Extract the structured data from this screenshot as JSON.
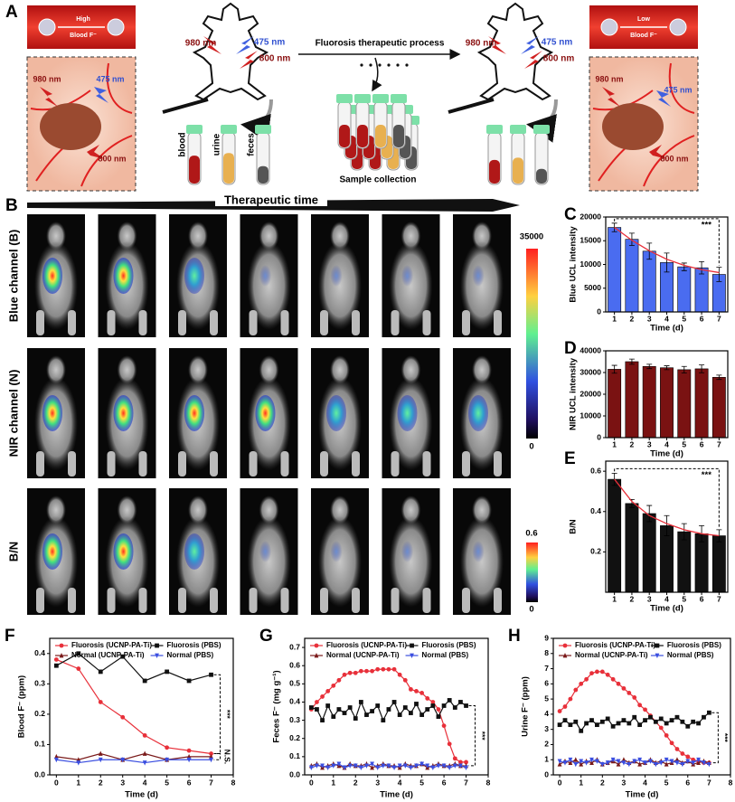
{
  "panel_a": {
    "label": "A",
    "left_box": {
      "level": "High",
      "blood": "Blood F⁻"
    },
    "left_inset": {
      "w980": "980 nm",
      "w475": "475 nm",
      "w800": "800 nm"
    },
    "left_mouse": {
      "w980": "980 nm",
      "w475": "475 nm",
      "w800": "800 nm"
    },
    "process": "Fluorosis therapeutic process",
    "tubes": [
      "blood",
      "urine",
      "feces"
    ],
    "sample_collection": "Sample collection",
    "right_mouse": {
      "w980": "980 nm",
      "w475": "475 nm",
      "w800": "800 nm"
    },
    "right_box": {
      "level": "Low",
      "blood": "Blood F⁻"
    },
    "right_inset": {
      "w980": "980 nm",
      "w475": "475 nm",
      "w800": "800 nm"
    }
  },
  "panel_b": {
    "label": "B",
    "arrow_title": "Therapeutic time",
    "rows": [
      "Blue channel (B)",
      "NIR channel (N)",
      "B/N"
    ],
    "colorbars": [
      {
        "max": 35000,
        "min": 0
      },
      {
        "max": 0.6,
        "min": 0
      }
    ]
  },
  "chart_data": [
    {
      "type": "bar",
      "panel": "C",
      "ylabel": "Blue UCL intensity",
      "xlabel": "Time (d)",
      "color": "#4a6cf0",
      "categories": [
        "1",
        "2",
        "3",
        "4",
        "5",
        "6",
        "7"
      ],
      "values": [
        17800,
        15300,
        12800,
        10400,
        9500,
        9300,
        7900
      ],
      "errors": [
        900,
        1300,
        1700,
        2000,
        800,
        1300,
        1500
      ],
      "trend": [
        17800,
        15100,
        12900,
        11100,
        9800,
        8900,
        8300
      ],
      "trend_color": "#e8303a",
      "annotation": "***",
      "ylim": [
        0,
        20000
      ],
      "yticks": [
        0,
        5000,
        10000,
        15000,
        20000
      ]
    },
    {
      "type": "bar",
      "panel": "D",
      "ylabel": "NIR UCL intensity",
      "xlabel": "Time (d)",
      "color": "#7a1212",
      "categories": [
        "1",
        "2",
        "3",
        "4",
        "5",
        "6",
        "7"
      ],
      "values": [
        31500,
        35000,
        32800,
        32200,
        31300,
        31700,
        27800
      ],
      "errors": [
        1800,
        1200,
        1000,
        900,
        1500,
        1800,
        1000
      ],
      "ylim": [
        0,
        40000
      ],
      "yticks": [
        0,
        10000,
        20000,
        30000,
        40000
      ]
    },
    {
      "type": "bar",
      "panel": "E",
      "ylabel": "B/N",
      "xlabel": "Time (d)",
      "color": "#111111",
      "categories": [
        "1",
        "2",
        "3",
        "4",
        "5",
        "6",
        "7"
      ],
      "values": [
        0.56,
        0.44,
        0.39,
        0.33,
        0.3,
        0.29,
        0.28
      ],
      "errors": [
        0.03,
        0.02,
        0.04,
        0.05,
        0.04,
        0.04,
        0.03
      ],
      "trend": [
        0.56,
        0.45,
        0.38,
        0.34,
        0.31,
        0.29,
        0.28
      ],
      "trend_color": "#e8303a",
      "annotation": "***",
      "ylim": [
        0,
        0.65
      ],
      "yticks": [
        0.2,
        0.4,
        0.6
      ]
    },
    {
      "type": "line",
      "panel": "F",
      "ylabel": "Blood F⁻ (ppm)",
      "xlabel": "Time (d)",
      "x": [
        0,
        1,
        2,
        3,
        4,
        5,
        6,
        7
      ],
      "series": [
        {
          "name": "Fluorosis (UCNP-PA-Ti)",
          "color": "#e8303a",
          "marker": "circle",
          "values": [
            0.38,
            0.35,
            0.24,
            0.19,
            0.13,
            0.09,
            0.08,
            0.07
          ]
        },
        {
          "name": "Fluorosis (PBS)",
          "color": "#111111",
          "marker": "square",
          "values": [
            0.36,
            0.4,
            0.34,
            0.39,
            0.31,
            0.34,
            0.31,
            0.33
          ]
        },
        {
          "name": "Normal (UCNP-PA-Ti)",
          "color": "#7a1a1a",
          "marker": "up",
          "values": [
            0.06,
            0.05,
            0.07,
            0.05,
            0.07,
            0.05,
            0.06,
            0.06
          ]
        },
        {
          "name": "Normal (PBS)",
          "color": "#3a4ee0",
          "marker": "down",
          "values": [
            0.05,
            0.04,
            0.05,
            0.05,
            0.04,
            0.05,
            0.05,
            0.05
          ]
        }
      ],
      "annotations": [
        "***",
        "N.S."
      ],
      "xlim": [
        -0.3,
        8
      ],
      "xticks": [
        0,
        1,
        2,
        3,
        4,
        5,
        6,
        7,
        8
      ],
      "ylim": [
        0,
        0.45
      ],
      "yticks": [
        {
          "value": 0,
          "label": "0.0"
        },
        0.1,
        0.2,
        0.3,
        0.4
      ]
    },
    {
      "type": "line",
      "panel": "G",
      "ylabel": "Feces F⁻ (mg g⁻¹)",
      "xlabel": "Time (d)",
      "x": [
        0,
        0.25,
        0.5,
        0.75,
        1,
        1.25,
        1.5,
        1.75,
        2,
        2.25,
        2.5,
        2.75,
        3,
        3.25,
        3.5,
        3.75,
        4,
        4.25,
        4.5,
        4.75,
        5,
        5.25,
        5.5,
        5.75,
        6,
        6.25,
        6.5,
        6.75,
        7
      ],
      "series": [
        {
          "name": "Fluorosis (UCNP-PA-Ti)",
          "color": "#e8303a",
          "marker": "circle",
          "values": [
            0.36,
            0.4,
            0.43,
            0.46,
            0.49,
            0.52,
            0.55,
            0.56,
            0.56,
            0.57,
            0.57,
            0.57,
            0.58,
            0.58,
            0.58,
            0.58,
            0.55,
            0.52,
            0.47,
            0.46,
            0.45,
            0.42,
            0.4,
            0.36,
            0.27,
            0.17,
            0.09,
            0.07,
            0.07
          ]
        },
        {
          "name": "Fluorosis (PBS)",
          "color": "#111111",
          "marker": "square",
          "values": [
            0.37,
            0.36,
            0.3,
            0.38,
            0.32,
            0.36,
            0.34,
            0.37,
            0.31,
            0.4,
            0.33,
            0.35,
            0.38,
            0.3,
            0.36,
            0.4,
            0.33,
            0.37,
            0.34,
            0.39,
            0.33,
            0.36,
            0.38,
            0.32,
            0.38,
            0.41,
            0.37,
            0.4,
            0.38
          ]
        },
        {
          "name": "Normal (UCNP-PA-Ti)",
          "color": "#7a1a1a",
          "marker": "up",
          "values": [
            0.05,
            0.06,
            0.04,
            0.05,
            0.06,
            0.05,
            0.04,
            0.06,
            0.05,
            0.05,
            0.06,
            0.04,
            0.05,
            0.06,
            0.05,
            0.05,
            0.04,
            0.06,
            0.05,
            0.05,
            0.06,
            0.04,
            0.05,
            0.06,
            0.05,
            0.05,
            0.06,
            0.05,
            0.05
          ]
        },
        {
          "name": "Normal (PBS)",
          "color": "#3a4ee0",
          "marker": "down",
          "values": [
            0.04,
            0.05,
            0.05,
            0.04,
            0.05,
            0.06,
            0.04,
            0.05,
            0.05,
            0.04,
            0.05,
            0.06,
            0.04,
            0.05,
            0.05,
            0.04,
            0.05,
            0.05,
            0.04,
            0.05,
            0.06,
            0.05,
            0.04,
            0.05,
            0.05,
            0.04,
            0.05,
            0.05,
            0.04
          ]
        }
      ],
      "annotations": [
        "***"
      ],
      "xlim": [
        -0.3,
        8
      ],
      "xticks": [
        0,
        1,
        2,
        3,
        4,
        5,
        6,
        7,
        8
      ],
      "ylim": [
        0,
        0.75
      ],
      "yticks": [
        {
          "value": 0,
          "label": "0.0"
        },
        0.1,
        0.2,
        0.3,
        0.4,
        0.5,
        0.6,
        0.7
      ]
    },
    {
      "type": "line",
      "panel": "H",
      "ylabel": "Urine F⁻ (ppm)",
      "xlabel": "Time (d)",
      "x": [
        0,
        0.25,
        0.5,
        0.75,
        1,
        1.25,
        1.5,
        1.75,
        2,
        2.25,
        2.5,
        2.75,
        3,
        3.25,
        3.5,
        3.75,
        4,
        4.25,
        4.5,
        4.75,
        5,
        5.25,
        5.5,
        5.75,
        6,
        6.25,
        6.5,
        6.75,
        7
      ],
      "series": [
        {
          "name": "Fluorosis (UCNP-PA-Ti)",
          "color": "#e8303a",
          "marker": "circle",
          "values": [
            4.2,
            4.5,
            5.0,
            5.6,
            6.0,
            6.3,
            6.7,
            6.8,
            6.8,
            6.6,
            6.3,
            6.0,
            5.7,
            5.4,
            5.1,
            4.6,
            4.3,
            3.9,
            3.5,
            3.1,
            2.6,
            2.1,
            1.7,
            1.4,
            1.2,
            1.0,
            0.9,
            0.8,
            0.8
          ]
        },
        {
          "name": "Fluorosis (PBS)",
          "color": "#111111",
          "marker": "square",
          "values": [
            3.3,
            3.6,
            3.3,
            3.5,
            2.9,
            3.4,
            3.6,
            3.3,
            3.5,
            3.7,
            3.2,
            3.4,
            3.6,
            3.4,
            3.8,
            3.3,
            3.6,
            3.8,
            3.5,
            3.7,
            3.4,
            3.6,
            3.8,
            3.5,
            3.2,
            3.5,
            3.4,
            3.8,
            4.1
          ]
        },
        {
          "name": "Normal (UCNP-PA-Ti)",
          "color": "#7a1a1a",
          "marker": "up",
          "values": [
            0.7,
            0.9,
            0.8,
            1.0,
            0.7,
            0.9,
            0.8,
            1.0,
            0.7,
            0.8,
            0.9,
            0.7,
            1.0,
            0.8,
            0.9,
            0.7,
            0.8,
            1.0,
            0.8,
            0.9,
            0.7,
            0.8,
            1.0,
            0.8,
            0.9,
            0.7,
            0.8,
            0.9,
            0.8
          ]
        },
        {
          "name": "Normal (PBS)",
          "color": "#3a4ee0",
          "marker": "down",
          "values": [
            0.9,
            0.8,
            1.0,
            0.7,
            0.9,
            0.8,
            1.0,
            0.9,
            0.7,
            0.8,
            1.0,
            0.9,
            0.8,
            0.7,
            0.9,
            1.0,
            0.8,
            0.9,
            0.7,
            0.8,
            1.0,
            0.9,
            0.8,
            0.7,
            0.9,
            0.8,
            1.0,
            0.8,
            0.7
          ]
        }
      ],
      "annotations": [
        "***"
      ],
      "xlim": [
        -0.3,
        8
      ],
      "xticks": [
        0,
        1,
        2,
        3,
        4,
        5,
        6,
        7,
        8
      ],
      "ylim": [
        0,
        9
      ],
      "yticks": [
        0,
        1,
        2,
        3,
        4,
        5,
        6,
        7,
        8,
        9
      ]
    }
  ]
}
